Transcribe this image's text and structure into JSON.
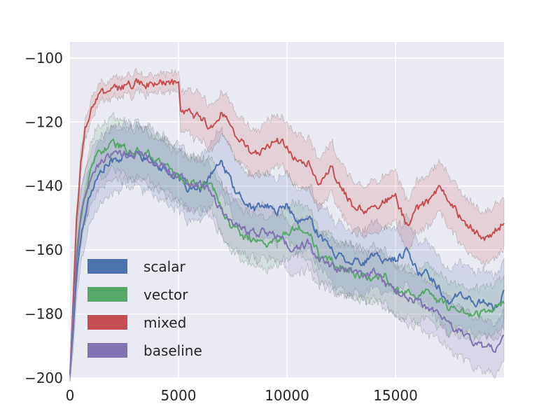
{
  "chart_data": {
    "type": "line",
    "title": "",
    "xlabel": "",
    "ylabel": "",
    "xlim": [
      0,
      20000
    ],
    "ylim": [
      -200,
      -95
    ],
    "x_ticks": [
      0,
      5000,
      10000,
      15000
    ],
    "x_tick_labels": [
      "0",
      "5000",
      "10000",
      "15000"
    ],
    "y_ticks": [
      -100,
      -120,
      -140,
      -160,
      -180,
      -200
    ],
    "y_tick_labels": [
      "−100",
      "−120",
      "−140",
      "−160",
      "−180",
      "−200"
    ],
    "grid": true,
    "legend_position": "lower-left",
    "band": "shaded band around each line",
    "series": [
      {
        "name": "scalar",
        "color": "#4c72b0",
        "x": [
          0,
          150,
          300,
          500,
          700,
          900,
          1200,
          1600,
          2000,
          2500,
          3000,
          3500,
          4000,
          4500,
          5000,
          5500,
          6000,
          6500,
          7000,
          7500,
          8000,
          8500,
          9000,
          9500,
          10000,
          10500,
          11000,
          11500,
          12000,
          12500,
          13000,
          13500,
          14000,
          14500,
          15000,
          15500,
          16000,
          16500,
          17000,
          17500,
          18000,
          18500,
          19000,
          19500,
          20000
        ],
        "y": [
          -199,
          -185,
          -168,
          -156,
          -148,
          -143,
          -138,
          -134,
          -132,
          -131,
          -130,
          -131,
          -133,
          -135,
          -138,
          -141,
          -142,
          -136,
          -133,
          -140,
          -145,
          -147,
          -146,
          -148,
          -146,
          -152,
          -150,
          -155,
          -160,
          -162,
          -163,
          -164,
          -162,
          -163,
          -163,
          -160,
          -167,
          -167,
          -172,
          -176,
          -174,
          -176,
          -176,
          -178,
          -174
        ],
        "band": [
          2,
          6,
          8,
          8,
          9,
          9,
          10,
          10,
          10,
          10,
          10,
          10,
          10,
          10,
          10,
          10,
          10,
          10,
          10,
          10,
          10,
          10,
          10,
          10,
          10,
          10,
          10,
          10,
          10,
          10,
          10,
          10,
          10,
          10,
          10,
          10,
          10,
          10,
          10,
          10,
          10,
          10,
          10,
          10,
          10
        ]
      },
      {
        "name": "vector",
        "color": "#55a868",
        "x": [
          0,
          150,
          300,
          500,
          700,
          900,
          1200,
          1600,
          2000,
          2500,
          3000,
          3500,
          4000,
          4500,
          5000,
          5500,
          6000,
          6500,
          7000,
          7500,
          8000,
          8500,
          9000,
          9500,
          10000,
          10500,
          11000,
          11500,
          12000,
          12500,
          13000,
          13500,
          14000,
          14500,
          15000,
          15500,
          16000,
          16500,
          17000,
          17500,
          18000,
          18500,
          19000,
          19500,
          20000
        ],
        "y": [
          -199,
          -180,
          -162,
          -150,
          -143,
          -137,
          -131,
          -128,
          -127,
          -128,
          -129,
          -129,
          -132,
          -134,
          -137,
          -139,
          -140,
          -138,
          -148,
          -153,
          -156,
          -157,
          -158,
          -157,
          -154,
          -152,
          -154,
          -162,
          -163,
          -165,
          -167,
          -168,
          -170,
          -168,
          -172,
          -173,
          -175,
          -173,
          -176,
          -178,
          -179,
          -180,
          -180,
          -178,
          -176
        ],
        "band": [
          2,
          6,
          8,
          8,
          8,
          8,
          8,
          8,
          8,
          8,
          8,
          8,
          8,
          8,
          8,
          8,
          8,
          8,
          8,
          8,
          8,
          8,
          8,
          8,
          8,
          8,
          8,
          8,
          8,
          8,
          8,
          8,
          8,
          8,
          8,
          8,
          8,
          8,
          8,
          8,
          8,
          8,
          8,
          8,
          8
        ]
      },
      {
        "name": "mixed",
        "color": "#c44e52",
        "x": [
          0,
          150,
          300,
          500,
          700,
          900,
          1200,
          1600,
          2000,
          2500,
          3000,
          3500,
          4000,
          4500,
          5000,
          5100,
          5500,
          6000,
          6500,
          7000,
          7500,
          8000,
          8500,
          9000,
          9500,
          10000,
          10500,
          11000,
          11500,
          12000,
          12500,
          13000,
          13500,
          14000,
          14500,
          15000,
          15500,
          16000,
          16500,
          17000,
          17500,
          18000,
          18500,
          19000,
          19500,
          20000
        ],
        "y": [
          -199,
          -175,
          -150,
          -133,
          -122,
          -117,
          -112,
          -111,
          -110,
          -109,
          -108,
          -108,
          -108,
          -108,
          -108,
          -118,
          -117,
          -119,
          -121,
          -117,
          -122,
          -127,
          -131,
          -128,
          -126,
          -127,
          -133,
          -132,
          -139,
          -135,
          -140,
          -146,
          -148,
          -146,
          -144,
          -144,
          -152,
          -147,
          -145,
          -141,
          -145,
          -150,
          -153,
          -157,
          -155,
          -151
        ],
        "band": [
          2,
          3,
          3,
          3,
          3,
          3,
          3,
          3,
          3,
          3,
          3,
          3,
          3,
          3,
          3,
          6,
          7,
          7,
          7,
          7,
          7,
          7,
          7,
          8,
          8,
          8,
          8,
          8,
          8,
          8,
          8,
          8,
          8,
          8,
          8,
          8,
          8,
          8,
          8,
          8,
          8,
          8,
          8,
          8,
          8,
          8
        ]
      },
      {
        "name": "baseline",
        "color": "#8172b2",
        "x": [
          0,
          150,
          300,
          500,
          700,
          900,
          1200,
          1600,
          2000,
          2500,
          3000,
          3500,
          4000,
          4500,
          5000,
          5500,
          6000,
          6500,
          7000,
          7500,
          8000,
          8500,
          9000,
          9500,
          10000,
          10500,
          11000,
          11500,
          12000,
          12500,
          13000,
          13500,
          14000,
          14500,
          15000,
          15500,
          16000,
          16500,
          17000,
          17500,
          18000,
          18500,
          19000,
          19500,
          20000
        ],
        "y": [
          -199,
          -180,
          -163,
          -150,
          -144,
          -139,
          -134,
          -131,
          -130,
          -130,
          -130,
          -131,
          -133,
          -135,
          -137,
          -139,
          -140,
          -142,
          -148,
          -152,
          -153,
          -155,
          -154,
          -156,
          -158,
          -160,
          -158,
          -163,
          -165,
          -166,
          -166,
          -168,
          -167,
          -170,
          -173,
          -175,
          -176,
          -178,
          -180,
          -183,
          -185,
          -188,
          -190,
          -191,
          -188
        ],
        "band": [
          2,
          6,
          8,
          8,
          8,
          8,
          8,
          8,
          8,
          8,
          8,
          8,
          8,
          8,
          8,
          8,
          8,
          8,
          8,
          8,
          8,
          8,
          8,
          8,
          8,
          8,
          8,
          8,
          8,
          8,
          8,
          8,
          8,
          8,
          8,
          8,
          8,
          8,
          8,
          8,
          8,
          8,
          8,
          8,
          8
        ]
      }
    ]
  },
  "style": {
    "plot_background": "#eaeaf2",
    "grid_color": "#ffffff",
    "text_color": "#262626"
  }
}
